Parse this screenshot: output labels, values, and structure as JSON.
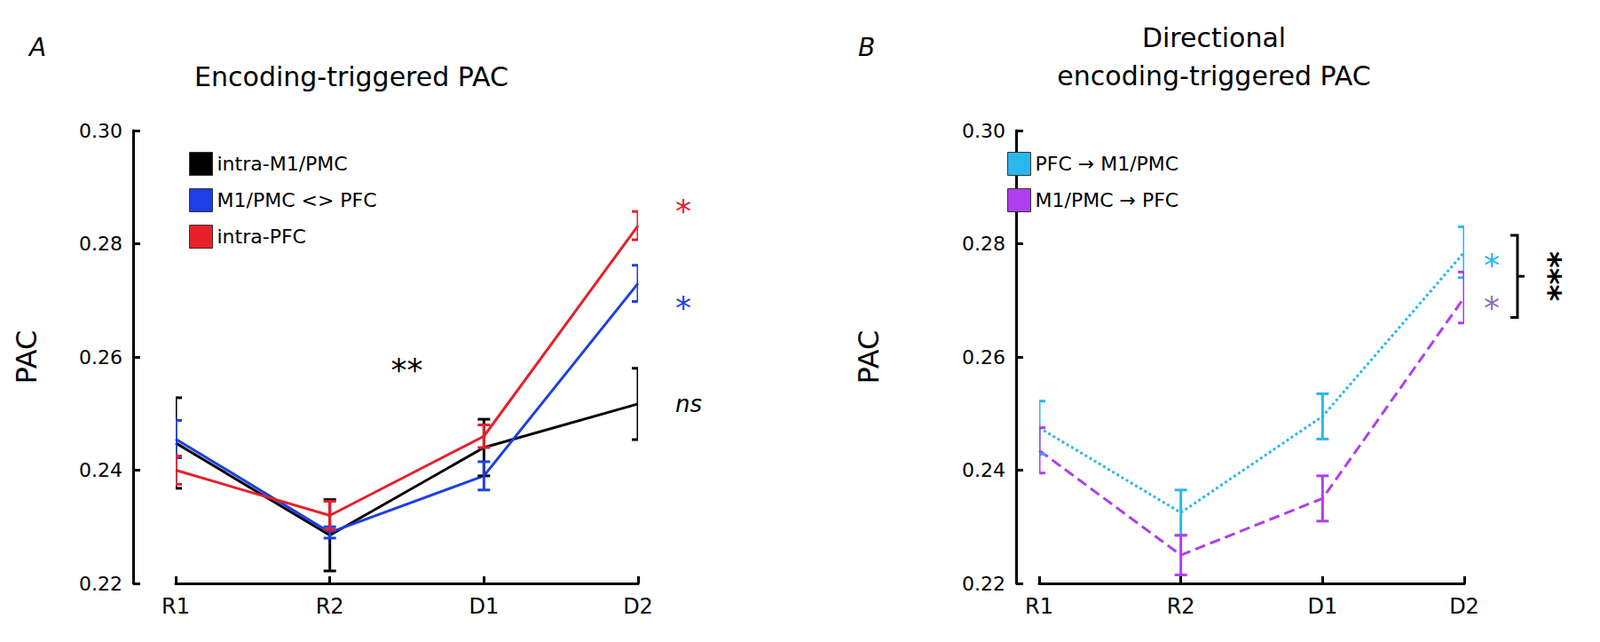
{
  "chart_data": [
    {
      "type": "line",
      "panel": "A",
      "title": "Encoding-triggered PAC",
      "y_label": "PAC",
      "categories": [
        "R1",
        "R2",
        "D1",
        "D2"
      ],
      "ylim": [
        0.22,
        0.3
      ],
      "yticks": [
        0.22,
        0.24,
        0.26,
        0.28,
        {
          "value": 0.3,
          "label": "0.30"
        }
      ],
      "grid": false,
      "legend": "upper left",
      "series": [
        {
          "name": "intra-M1/PMC",
          "color": "#000000",
          "line_style": "solid",
          "values": [
            0.2448,
            0.2285,
            0.244,
            0.2517
          ],
          "errors": [
            0.008,
            0.0063,
            0.005,
            0.0063
          ]
        },
        {
          "name": "M1/PMC <> PFC",
          "color": "#1c3fe6",
          "line_style": "solid",
          "values": [
            0.2455,
            0.229,
            0.239,
            0.273
          ],
          "errors": [
            0.0033,
            0.001,
            0.0025,
            0.0032
          ]
        },
        {
          "name": "intra-PFC",
          "color": "#e8202a",
          "line_style": "solid",
          "values": [
            0.24,
            0.232,
            0.246,
            0.2832
          ],
          "errors": [
            0.0025,
            0.0025,
            0.002,
            0.0025
          ]
        }
      ],
      "annotations": [
        {
          "text": "**",
          "x": [
            "R2",
            "D1"
          ],
          "y": 0.259,
          "color": "#000000"
        },
        {
          "text": "*",
          "x": "D2",
          "y": 0.287,
          "color": "#e8202a"
        },
        {
          "text": "*",
          "x": "D2",
          "y": 0.27,
          "color": "#1c3fe6"
        },
        {
          "text": "ns",
          "x": "D2",
          "y": 0.2517,
          "color": "#000000"
        }
      ]
    },
    {
      "type": "line",
      "panel": "B",
      "title": "Directional\nencoding-triggered PAC",
      "y_label": "PAC",
      "categories": [
        "R1",
        "R2",
        "D1",
        "D2"
      ],
      "ylim": [
        0.22,
        0.3
      ],
      "yticks": [
        0.22,
        0.24,
        0.26,
        0.28,
        {
          "value": 0.3,
          "label": "0.30"
        }
      ],
      "grid": false,
      "legend": "upper left",
      "series": [
        {
          "name": "PFC → M1/PMC",
          "color": "#29b8ee",
          "line_style": "dotted",
          "values": [
            0.2475,
            0.2325,
            0.2495,
            0.2785
          ],
          "errors": [
            0.0047,
            0.004,
            0.004,
            0.0045
          ]
        },
        {
          "name": "M1/PMC → PFC",
          "color": "#b03ef0",
          "line_style": "dashed",
          "values": [
            0.2435,
            0.225,
            0.235,
            0.2705
          ],
          "errors": [
            0.004,
            0.0035,
            0.004,
            0.0045
          ]
        }
      ],
      "annotations": [
        {
          "text": "*",
          "x": "D2",
          "y": 0.2775,
          "color": "#29b8ee"
        },
        {
          "text": "*",
          "x": "D2",
          "y": 0.27,
          "color": "#8e6fc0"
        },
        {
          "text": "***",
          "bracket": [
            0.2815,
            0.267
          ],
          "x": "D2",
          "color": "#000000"
        }
      ]
    }
  ]
}
